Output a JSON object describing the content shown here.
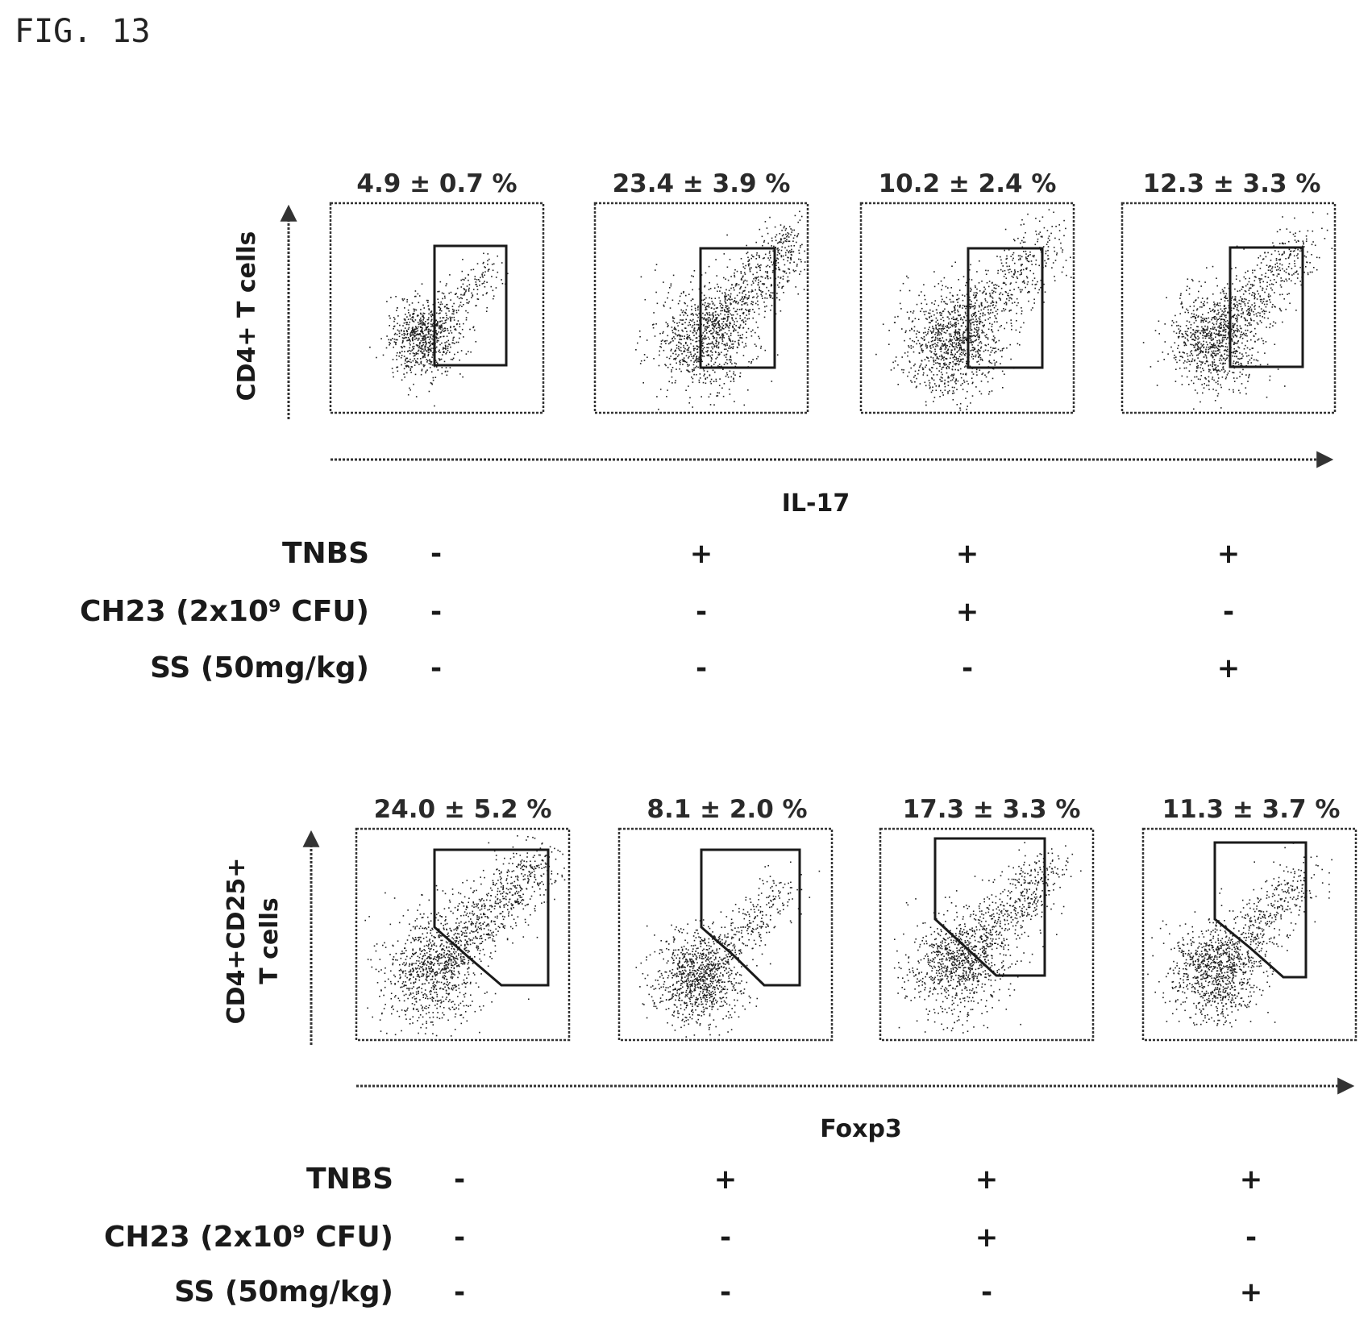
{
  "figure_label": "FIG. 13",
  "panels": [
    {
      "id": "il17",
      "y_label": "CD4+ T cells",
      "x_label": "IL-17",
      "plots": [
        {
          "percent": "4.9 ± 0.7 %"
        },
        {
          "percent": "23.4 ± 3.9 %"
        },
        {
          "percent": "10.2 ± 2.4 %"
        },
        {
          "percent": "12.3 ± 3.3 %"
        }
      ],
      "conditions": [
        {
          "label": "TNBS",
          "values": [
            "-",
            "+",
            "+",
            "+"
          ]
        },
        {
          "label": "CH23 (2x10⁹ CFU)",
          "values": [
            "-",
            "-",
            "+",
            "-"
          ]
        },
        {
          "label": "SS (50mg/kg)",
          "values": [
            "-",
            "-",
            "-",
            "+"
          ]
        }
      ]
    },
    {
      "id": "foxp3",
      "y_label": "CD4+CD25+",
      "y_label_line2": "T cells",
      "x_label": "Foxp3",
      "plots": [
        {
          "percent": "24.0 ± 5.2 %"
        },
        {
          "percent": "8.1 ± 2.0 %"
        },
        {
          "percent": "17.3 ± 3.3 %"
        },
        {
          "percent": "11.3 ± 3.7 %"
        }
      ],
      "conditions": [
        {
          "label": "TNBS",
          "values": [
            "-",
            "+",
            "+",
            "+"
          ]
        },
        {
          "label": "CH23 (2x10⁹ CFU)",
          "values": [
            "-",
            "-",
            "+",
            "-"
          ]
        },
        {
          "label": "SS (50mg/kg)",
          "values": [
            "-",
            "-",
            "-",
            "+"
          ]
        }
      ]
    }
  ]
}
